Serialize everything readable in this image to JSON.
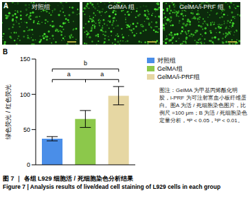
{
  "panel_a": {
    "label": "A",
    "images": [
      "对照组",
      "GelMA 组",
      "GelMA/i-PRF 组"
    ]
  },
  "panel_b": {
    "label": "B"
  },
  "chart_data": {
    "type": "bar",
    "y_label": "绿色荧光 / 红色荧光",
    "categories": [
      "对照组",
      "GelMA组",
      "GelMA/i-PRF组"
    ],
    "values": [
      37,
      65,
      98
    ],
    "errors": [
      3,
      12,
      13
    ],
    "colors": [
      "#4a8ee8",
      "#8cc84b",
      "#e6d7a3"
    ],
    "ylim": [
      0,
      150
    ],
    "yticks": [
      0,
      50,
      100,
      150
    ],
    "tick_labels": "y",
    "legend": "right",
    "annotations": [
      {
        "from": 0,
        "to": 1,
        "label": "a"
      },
      {
        "from": 1,
        "to": 2,
        "label": "a"
      },
      {
        "from": 0,
        "to": 2,
        "label": "b"
      }
    ]
  },
  "caption": "图注：GelMA 为甲基丙烯酰化明胶，i-PRF 为可注射富血小板纤维蛋白。图A 为活 / 死细胞染色图片，比例尺 =100 μm；B 为活 / 死细胞染色定量分析，ᵃP < 0.05，ᵇP < 0.01。",
  "figure_title": [
    "图 7 ｜ 各组 L929 细胞活 / 死细胞染色分析结果",
    "Figure 7 | Analysis results of live/dead cell staining of L929 cells in each group"
  ]
}
